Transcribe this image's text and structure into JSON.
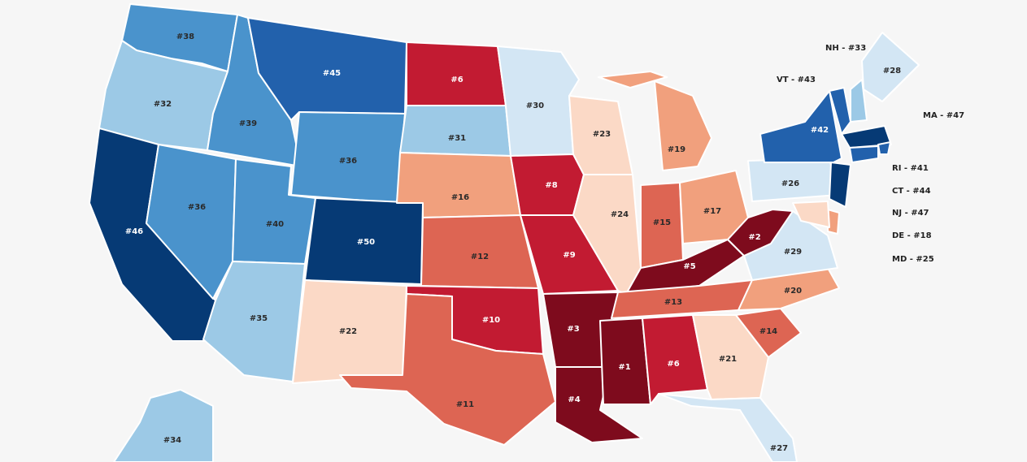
{
  "palette": {
    "dark_red": "#7e0b1d",
    "red": "#c21b32",
    "mid_red": "#dd6553",
    "light_red": "#f1a07d",
    "pale_red": "#fbd9c6",
    "pale_blue": "#d3e6f4",
    "light_blue": "#9cc9e6",
    "mid_blue": "#4a93cc",
    "blue": "#2261ac",
    "dark_blue": "#063a75",
    "background": "#f6f6f6",
    "border": "#ffffff"
  },
  "map": {
    "states": [
      {
        "id": "WA",
        "label": "#38",
        "fill": "#4a93cc"
      },
      {
        "id": "OR",
        "label": "#32",
        "fill": "#9cc9e6"
      },
      {
        "id": "CA",
        "label": "#46",
        "fill": "#063a75"
      },
      {
        "id": "ID",
        "label": "#39",
        "fill": "#4a93cc"
      },
      {
        "id": "NV",
        "label": "#36",
        "fill": "#4a93cc"
      },
      {
        "id": "MT",
        "label": "#45",
        "fill": "#2261ac"
      },
      {
        "id": "WY",
        "label": "#36",
        "fill": "#4a93cc"
      },
      {
        "id": "UT",
        "label": "#40",
        "fill": "#4a93cc"
      },
      {
        "id": "AZ",
        "label": "#35",
        "fill": "#9cc9e6"
      },
      {
        "id": "CO",
        "label": "#50",
        "fill": "#063a75"
      },
      {
        "id": "NM",
        "label": "#22",
        "fill": "#fbd9c6"
      },
      {
        "id": "ND",
        "label": "#6",
        "fill": "#c21b32"
      },
      {
        "id": "SD",
        "label": "#31",
        "fill": "#9cc9e6"
      },
      {
        "id": "NE",
        "label": "#16",
        "fill": "#f1a07d"
      },
      {
        "id": "KS",
        "label": "#12",
        "fill": "#dd6553"
      },
      {
        "id": "OK",
        "label": "#10",
        "fill": "#c21b32"
      },
      {
        "id": "TX",
        "label": "#11",
        "fill": "#dd6553"
      },
      {
        "id": "MN",
        "label": "#30",
        "fill": "#d3e6f4"
      },
      {
        "id": "IA",
        "label": "#8",
        "fill": "#c21b32"
      },
      {
        "id": "MO",
        "label": "#9",
        "fill": "#c21b32"
      },
      {
        "id": "AR",
        "label": "#3",
        "fill": "#7e0b1d"
      },
      {
        "id": "LA",
        "label": "#4",
        "fill": "#7e0b1d"
      },
      {
        "id": "WI",
        "label": "#23",
        "fill": "#fbd9c6"
      },
      {
        "id": "IL",
        "label": "#24",
        "fill": "#fbd9c6"
      },
      {
        "id": "MI",
        "label": "#19",
        "fill": "#f1a07d"
      },
      {
        "id": "IN",
        "label": "#15",
        "fill": "#dd6553"
      },
      {
        "id": "OH",
        "label": "#17",
        "fill": "#f1a07d"
      },
      {
        "id": "KY",
        "label": "#5",
        "fill": "#7e0b1d"
      },
      {
        "id": "TN",
        "label": "#13",
        "fill": "#dd6553"
      },
      {
        "id": "MS",
        "label": "#1",
        "fill": "#7e0b1d"
      },
      {
        "id": "AL",
        "label": "#6",
        "fill": "#c21b32"
      },
      {
        "id": "GA",
        "label": "#21",
        "fill": "#fbd9c6"
      },
      {
        "id": "FL",
        "label": "#27",
        "fill": "#d3e6f4"
      },
      {
        "id": "SC",
        "label": "#14",
        "fill": "#dd6553"
      },
      {
        "id": "NC",
        "label": "#20",
        "fill": "#f1a07d"
      },
      {
        "id": "VA",
        "label": "#29",
        "fill": "#d3e6f4"
      },
      {
        "id": "WV",
        "label": "#2",
        "fill": "#7e0b1d"
      },
      {
        "id": "PA",
        "label": "#26",
        "fill": "#d3e6f4"
      },
      {
        "id": "NY",
        "label": "#42",
        "fill": "#2261ac"
      },
      {
        "id": "ME",
        "label": "#28",
        "fill": "#d3e6f4"
      },
      {
        "id": "AK",
        "label": "#34",
        "fill": "#9cc9e6"
      }
    ],
    "small_states": [
      {
        "id": "VT",
        "fill": "#2261ac"
      },
      {
        "id": "NH",
        "fill": "#9cc9e6"
      },
      {
        "id": "MA",
        "fill": "#063a75"
      },
      {
        "id": "RI",
        "fill": "#2261ac"
      },
      {
        "id": "CT",
        "fill": "#2261ac"
      },
      {
        "id": "NJ",
        "fill": "#063a75"
      },
      {
        "id": "DE",
        "fill": "#f1a07d"
      },
      {
        "id": "MD",
        "fill": "#fbd9c6"
      }
    ],
    "callouts": [
      {
        "id": "NH",
        "text": "NH - #33"
      },
      {
        "id": "VT",
        "text": "VT - #43"
      },
      {
        "id": "MA",
        "text": "MA - #47"
      },
      {
        "id": "RI",
        "text": "RI - #41"
      },
      {
        "id": "CT",
        "text": "CT - #44"
      },
      {
        "id": "NJ",
        "text": "NJ - #47"
      },
      {
        "id": "DE",
        "text": "DE - #18"
      },
      {
        "id": "MD",
        "text": "MD - #25"
      }
    ]
  }
}
